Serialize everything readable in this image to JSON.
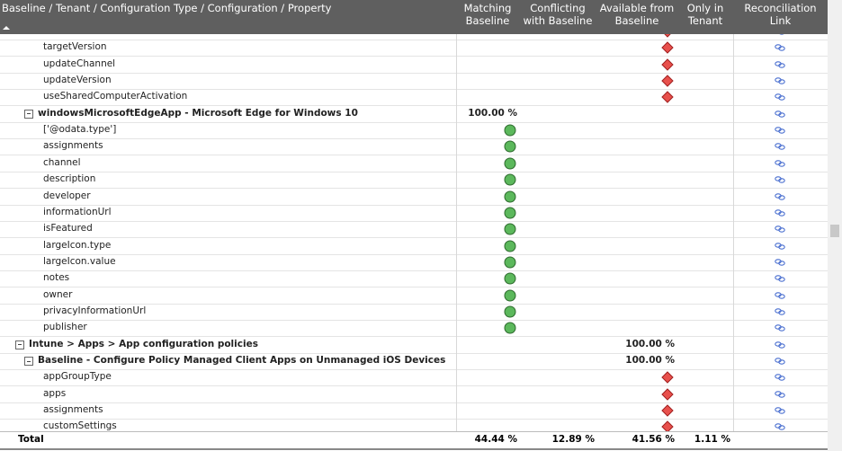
{
  "header": {
    "columns": [
      "Baseline / Tenant / Configuration Type / Configuration / Property",
      "Matching Baseline",
      "Conflicting with Baseline",
      "Available from Baseline",
      "Only in Tenant",
      "Reconciliation Link"
    ]
  },
  "rows": [
    {
      "state": "available"
    },
    {
      "label": "targetVersion",
      "state": "available"
    },
    {
      "label": "updateChannel",
      "state": "available"
    },
    {
      "label": "updateVersion",
      "state": "available"
    },
    {
      "label": "useSharedComputerActivation",
      "state": "available"
    },
    {
      "label": "windowsMicrosoftEdgeApp - Microsoft Edge for Windows 10",
      "depth": 1,
      "matching": "100.00 %"
    },
    {
      "label": "['@odata.type']",
      "state": "matching"
    },
    {
      "label": "assignments",
      "state": "matching"
    },
    {
      "label": "channel",
      "state": "matching"
    },
    {
      "label": "description",
      "state": "matching"
    },
    {
      "label": "developer",
      "state": "matching"
    },
    {
      "label": "informationUrl",
      "state": "matching"
    },
    {
      "label": "isFeatured",
      "state": "matching"
    },
    {
      "label": "largeIcon.type",
      "state": "matching"
    },
    {
      "label": "largeIcon.value",
      "state": "matching"
    },
    {
      "label": "notes",
      "state": "matching"
    },
    {
      "label": "owner",
      "state": "matching"
    },
    {
      "label": "privacyInformationUrl",
      "state": "matching"
    },
    {
      "label": "publisher",
      "state": "matching"
    },
    {
      "label": "Intune > Apps > App configuration policies",
      "depth": 0,
      "available": "100.00 %"
    },
    {
      "label": "Baseline - Configure Policy Managed Client Apps on Unmanaged iOS Devices",
      "depth": 1,
      "available": "100.00 %"
    },
    {
      "label": "appGroupType",
      "state": "available"
    },
    {
      "label": "apps",
      "state": "available"
    },
    {
      "label": "assignments",
      "state": "available"
    },
    {
      "label": "customSettings",
      "state": "available"
    }
  ],
  "total": {
    "label": "Total",
    "values": [
      "44.44 %",
      "12.89 %",
      "41.56 %",
      "1.11 %"
    ]
  }
}
